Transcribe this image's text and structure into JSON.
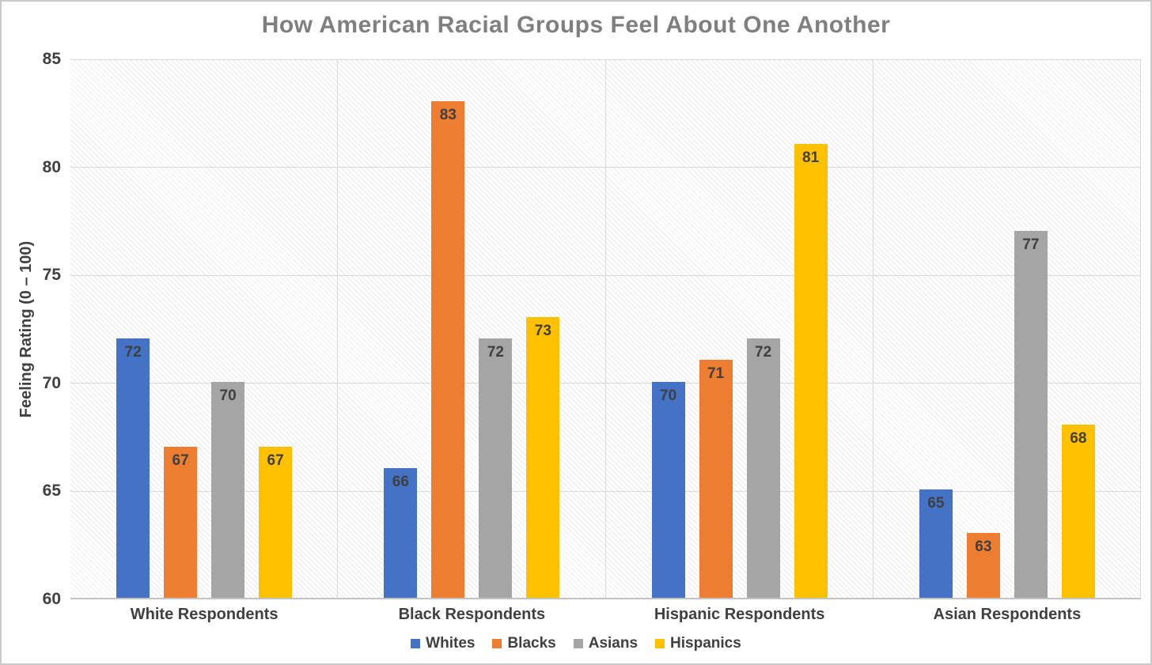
{
  "page": {
    "border_color": "#c9c9c9",
    "background": "#ffffff"
  },
  "chart_data": {
    "type": "bar",
    "title": "How American Racial Groups Feel About One Another",
    "ylabel": "Feeling Rating (0 – 100)",
    "xlabel": "",
    "ylim": [
      60,
      85
    ],
    "yticks": [
      60,
      65,
      70,
      75,
      80,
      85
    ],
    "grid": true,
    "legend_position": "bottom",
    "categories": [
      "White Respondents",
      "Black Respondents",
      "Hispanic Respondents",
      "Asian Respondents"
    ],
    "series": [
      {
        "name": "Whites",
        "color": "#4472C4",
        "values": [
          72,
          66,
          70,
          65
        ]
      },
      {
        "name": "Blacks",
        "color": "#ED7D31",
        "values": [
          67,
          83,
          71,
          63
        ]
      },
      {
        "name": "Asians",
        "color": "#A5A5A5",
        "values": [
          70,
          72,
          72,
          77
        ]
      },
      {
        "name": "Hispanics",
        "color": "#FFC000",
        "values": [
          67,
          73,
          81,
          68
        ]
      }
    ],
    "data_labels_shown": true,
    "colors": {
      "title_text": "#7f7f7f",
      "axis_text": "#404040",
      "data_label_text": "#3f3f3f",
      "gridline": "#d9d9d9",
      "axis_line": "#c3c3c3",
      "plot_hatch": "#e9e9e9"
    }
  }
}
